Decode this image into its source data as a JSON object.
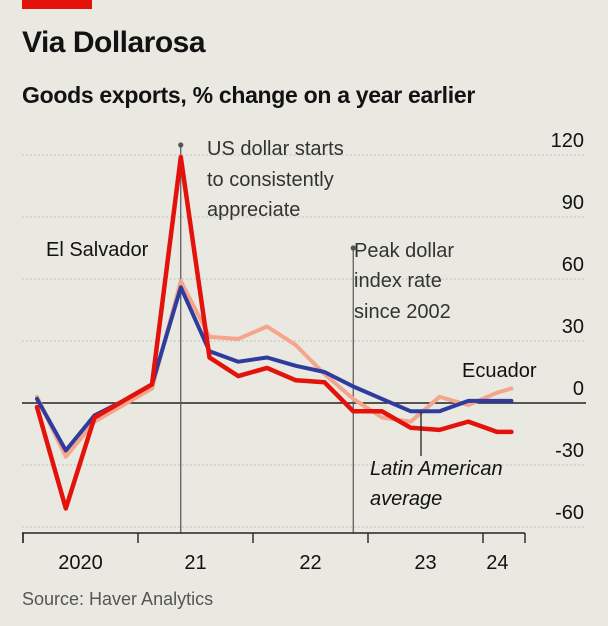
{
  "title": "Via Dollarosa",
  "subtitle": "Goods exports, % change on a year earlier",
  "source": "Source: Haver Analytics",
  "colors": {
    "background": "#e9e8e1",
    "brand": "#e3120b",
    "el_salvador": "#e3120b",
    "latam": "#2e3d9d",
    "ecuador": "#f4a58c",
    "grid": "#b7b7b2",
    "axis": "#222222",
    "annotation_line": "#555555"
  },
  "chart_data": {
    "type": "line",
    "title": "Via Dollarosa",
    "ylabel": "Goods exports, % change on a year earlier",
    "ylim": [
      -66,
      126
    ],
    "yticks": [
      120,
      90,
      60,
      30,
      0,
      -30,
      -60
    ],
    "ytick_labels": [
      "120",
      "90",
      "60",
      "30",
      "0",
      "-30",
      "-60"
    ],
    "xlim": [
      2019.85,
      2024.25
    ],
    "x_year_boundaries": [
      2020,
      2021,
      2022,
      2023,
      2024
    ],
    "x_tick_labels": [
      {
        "x": 2020.5,
        "label": "2020"
      },
      {
        "x": 2021.5,
        "label": "21"
      },
      {
        "x": 2022.5,
        "label": "22"
      },
      {
        "x": 2023.5,
        "label": "23"
      },
      {
        "x": 2024.125,
        "label": "24"
      }
    ],
    "series": [
      {
        "name": "El Salvador",
        "color": "#e3120b",
        "x": [
          2020.0,
          2020.25,
          2020.5,
          2020.75,
          2021.0,
          2021.25,
          2021.5,
          2021.75,
          2022.0,
          2022.25,
          2022.5,
          2022.75,
          2023.0,
          2023.25,
          2023.5,
          2023.75,
          2024.0,
          2024.125
        ],
        "values": [
          -2,
          -51,
          -7,
          1,
          9,
          119,
          22,
          13,
          17,
          11,
          10,
          -4,
          -4,
          -12,
          -13,
          -9,
          -14,
          -14
        ]
      },
      {
        "name": "Latin American average",
        "color": "#2e3d9d",
        "x": [
          2020.0,
          2020.25,
          2020.5,
          2020.75,
          2021.0,
          2021.25,
          2021.5,
          2021.75,
          2022.0,
          2022.25,
          2022.5,
          2022.75,
          2023.0,
          2023.25,
          2023.5,
          2023.75,
          2024.0,
          2024.125
        ],
        "values": [
          2,
          -23,
          -6,
          1,
          9,
          56,
          25,
          20,
          22,
          18,
          15,
          8,
          2,
          -4,
          -4,
          1,
          1,
          1
        ]
      },
      {
        "name": "Ecuador",
        "color": "#f4a58c",
        "x": [
          2020.0,
          2020.25,
          2020.5,
          2020.75,
          2021.0,
          2021.25,
          2021.5,
          2021.75,
          2022.0,
          2022.25,
          2022.5,
          2022.75,
          2023.0,
          2023.25,
          2023.5,
          2023.75,
          2024.0,
          2024.125
        ],
        "values": [
          3,
          -26,
          -9,
          -1,
          7,
          59,
          32,
          31,
          37,
          28,
          14,
          2,
          -7,
          -9,
          3,
          -1,
          5,
          7
        ]
      }
    ],
    "annotations": [
      {
        "x": 2021.25,
        "text_lines": [
          "US dollar starts",
          "to consistently",
          "appreciate"
        ]
      },
      {
        "x": 2022.75,
        "text_lines": [
          "Peak dollar",
          "index rate",
          "since 2002"
        ]
      }
    ],
    "series_labels": {
      "el_salvador": "El Salvador",
      "ecuador": "Ecuador",
      "latam_lines": [
        "Latin American",
        "average"
      ]
    }
  }
}
